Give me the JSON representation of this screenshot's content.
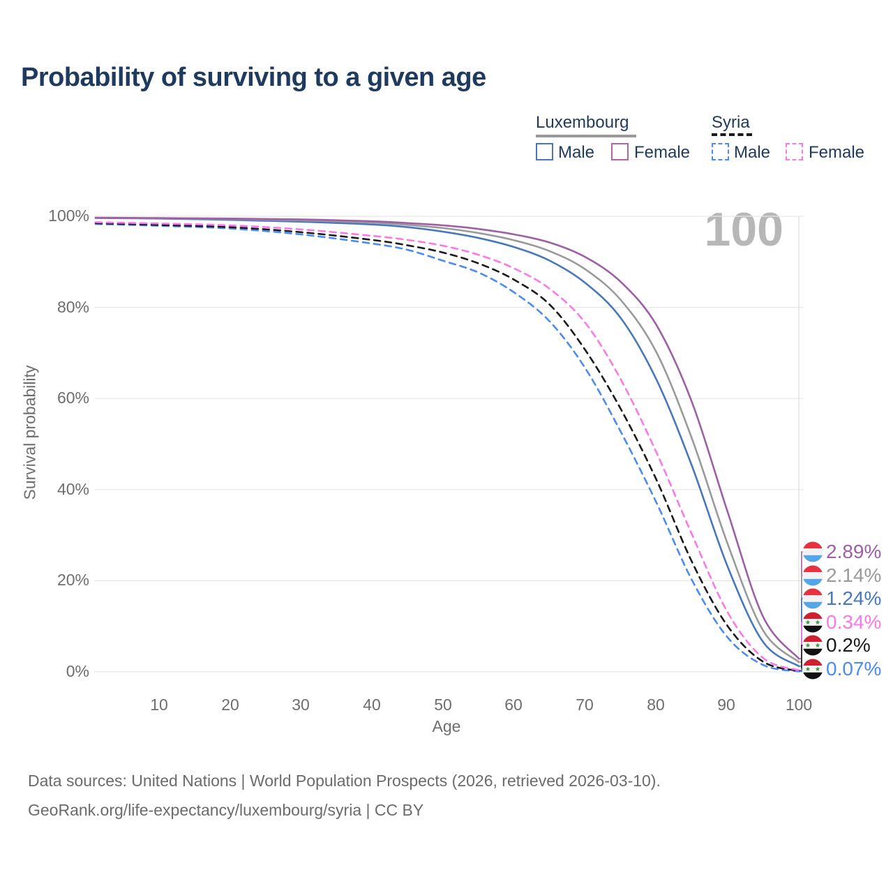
{
  "title": "Probability of surviving to a given age",
  "watermark": "100",
  "legend": {
    "groups": [
      {
        "name": "Luxembourg",
        "line_style": "solid",
        "underline_color": "#9a9a9a",
        "items": [
          {
            "label": "Male",
            "color": "#4878bc"
          },
          {
            "label": "Female",
            "color": "#b163ae"
          }
        ]
      },
      {
        "name": "Syria",
        "line_style": "dashed",
        "underline_color": "#1a1a1a",
        "items": [
          {
            "label": "Male",
            "color": "#4a8cf2"
          },
          {
            "label": "Female",
            "color": "#fb78e8"
          }
        ]
      }
    ]
  },
  "y_axis": {
    "title": "Survival probability",
    "ticks": [
      "100%",
      "80%",
      "60%",
      "40%",
      "20%",
      "0%"
    ]
  },
  "x_axis": {
    "title": "Age",
    "ticks": [
      "10",
      "20",
      "30",
      "40",
      "50",
      "60",
      "70",
      "80",
      "90",
      "100"
    ]
  },
  "end_labels": [
    {
      "value": "2.89%",
      "y_value": 2.89,
      "flag": "luxembourg",
      "color": "#9e5fa7"
    },
    {
      "value": "2.14%",
      "y_value": 2.14,
      "flag": "luxembourg",
      "color": "#9a9a9a"
    },
    {
      "value": "1.24%",
      "y_value": 1.24,
      "flag": "luxembourg",
      "color": "#4878bc"
    },
    {
      "value": "0.34%",
      "y_value": 0.34,
      "flag": "syria",
      "color": "#fb78e8"
    },
    {
      "value": "0.2%",
      "y_value": 0.2,
      "flag": "syria",
      "color": "#1a1a1a"
    },
    {
      "value": "0.07%",
      "y_value": 0.07,
      "flag": "syria",
      "color": "#4a8cf2"
    }
  ],
  "footer": {
    "line1": "Data sources: United Nations | World Population Prospects (2026, retrieved 2026-03-10).",
    "line2": "GeoRank.org/life-expectancy/luxembourg/syria | CC BY"
  },
  "colors": {
    "grid": "#e7e7e7",
    "hover_line": "#dcdcdc",
    "title_text": "#1e3a5f",
    "axis_text": "#6e6e6e",
    "watermark": "#b7b7b7",
    "footer_text": "#6b6b6b",
    "flag_luxembourg": [
      "#e8313e",
      "#f2f2f2",
      "#54a6e8"
    ],
    "flag_syria": [
      "#ce2030",
      "#f5f5f5",
      "#111111"
    ],
    "flag_syria_star": "#3f9c44"
  },
  "chart_data": {
    "type": "line",
    "title": "Probability of surviving to a given age",
    "xlabel": "Age",
    "ylabel": "Survival probability",
    "xlim": [
      1,
      100
    ],
    "ylim": [
      0,
      100
    ],
    "grid": "horizontal",
    "hover_age": 100,
    "x": [
      1,
      10,
      20,
      30,
      40,
      45,
      50,
      55,
      60,
      65,
      70,
      75,
      80,
      85,
      90,
      95,
      100
    ],
    "series": [
      {
        "name": "Syria Male",
        "color": "#4a8cf2",
        "dashed": true,
        "values": [
          98.3,
          97.9,
          97.3,
          96.0,
          94.0,
          92.6,
          90.2,
          87.6,
          83.2,
          76.8,
          66.5,
          52.5,
          37.0,
          20.0,
          7.5,
          1.5,
          0.07
        ]
      },
      {
        "name": "Syria Combined",
        "color": "#1a1a1a",
        "dashed": true,
        "values": [
          98.5,
          98.1,
          97.6,
          96.5,
          94.8,
          93.6,
          92.0,
          89.6,
          86.0,
          80.5,
          70.5,
          57.5,
          42.0,
          24.0,
          10.0,
          2.2,
          0.2
        ]
      },
      {
        "name": "Syria Female",
        "color": "#fb78e8",
        "dashed": true,
        "values": [
          98.7,
          98.4,
          98.0,
          97.1,
          95.7,
          94.8,
          93.5,
          91.5,
          88.5,
          84.0,
          76.5,
          64.0,
          48.0,
          30.0,
          13.0,
          3.0,
          0.34
        ]
      },
      {
        "name": "Luxembourg Male",
        "color": "#4878bc",
        "dashed": false,
        "values": [
          99.6,
          99.5,
          99.2,
          98.8,
          98.2,
          97.6,
          96.6,
          95.2,
          93.2,
          90.2,
          85.3,
          77.5,
          64.0,
          45.0,
          23.0,
          6.5,
          1.24
        ]
      },
      {
        "name": "Luxembourg Combined",
        "color": "#9a9a9a",
        "dashed": false,
        "values": [
          99.65,
          99.55,
          99.4,
          99.1,
          98.6,
          98.1,
          97.4,
          96.3,
          94.7,
          92.3,
          88.3,
          81.5,
          70.0,
          51.0,
          28.0,
          9.0,
          2.14
        ]
      },
      {
        "name": "Luxembourg Female",
        "color": "#9e5fa7",
        "dashed": false,
        "values": [
          99.7,
          99.6,
          99.5,
          99.3,
          98.9,
          98.5,
          98.0,
          97.2,
          96.0,
          94.2,
          91.0,
          85.5,
          76.0,
          59.0,
          35.0,
          12.0,
          2.89
        ]
      }
    ]
  }
}
